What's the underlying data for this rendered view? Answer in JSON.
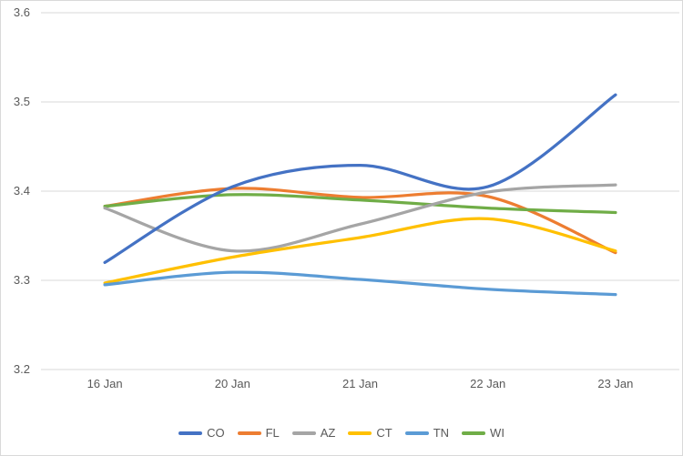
{
  "chart_data": {
    "type": "line",
    "title": "",
    "xlabel": "",
    "ylabel": "",
    "categories": [
      "16 Jan",
      "20 Jan",
      "21 Jan",
      "22 Jan",
      "23 Jan"
    ],
    "series": [
      {
        "name": "CO",
        "color": "#4472C4",
        "values": [
          3.32,
          3.405,
          3.429,
          3.405,
          3.508
        ]
      },
      {
        "name": "FL",
        "color": "#ED7D31",
        "values": [
          3.383,
          3.403,
          3.393,
          3.394,
          3.331
        ]
      },
      {
        "name": "AZ",
        "color": "#A5A5A5",
        "values": [
          3.381,
          3.333,
          3.363,
          3.399,
          3.407
        ]
      },
      {
        "name": "CT",
        "color": "#FFC000",
        "values": [
          3.297,
          3.326,
          3.348,
          3.369,
          3.333
        ]
      },
      {
        "name": "TN",
        "color": "#5B9BD5",
        "values": [
          3.295,
          3.309,
          3.301,
          3.29,
          3.284
        ]
      },
      {
        "name": "WI",
        "color": "#70AD47",
        "values": [
          3.383,
          3.396,
          3.39,
          3.381,
          3.376
        ]
      }
    ],
    "draw_order": [
      "FL",
      "WI",
      "AZ",
      "CT",
      "TN",
      "CO"
    ],
    "ylim": [
      3.2,
      3.6
    ],
    "ytick_step": 0.1,
    "ytick_labels": [
      "3.2",
      "3.3",
      "3.4",
      "3.5",
      "3.6"
    ],
    "smooth": true,
    "grid": "horizontal",
    "legend_position": "bottom",
    "line_width": 3.25,
    "colors": {
      "background": "#FFFFFF",
      "border": "#D9D9D9",
      "gridline": "#D9D9D9",
      "axis_text": "#595959"
    }
  }
}
